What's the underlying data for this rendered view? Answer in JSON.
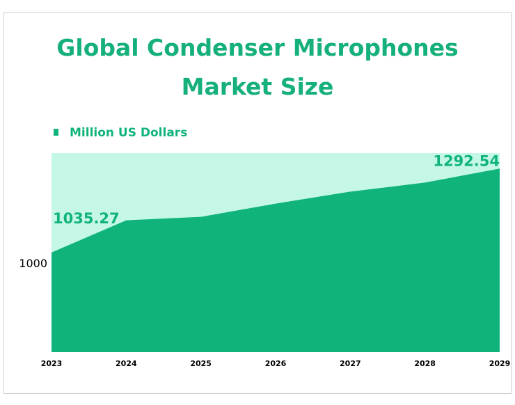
{
  "chart_data": {
    "type": "area",
    "title": "Global Condenser Microphones Market Size",
    "categories": [
      "2023",
      "2024",
      "2025",
      "2026",
      "2027",
      "2028",
      "2029"
    ],
    "series": [
      {
        "name": "Million US Dollars",
        "color": "#10b47a",
        "values": [
          1035.27,
          1133.9,
          1144.6,
          1185.0,
          1221.8,
          1249.6,
          1292.54
        ]
      }
    ],
    "plot_background": "#c5f7e6",
    "ylim": [
      730,
      1340
    ],
    "yticks": [
      1000
    ]
  }
}
